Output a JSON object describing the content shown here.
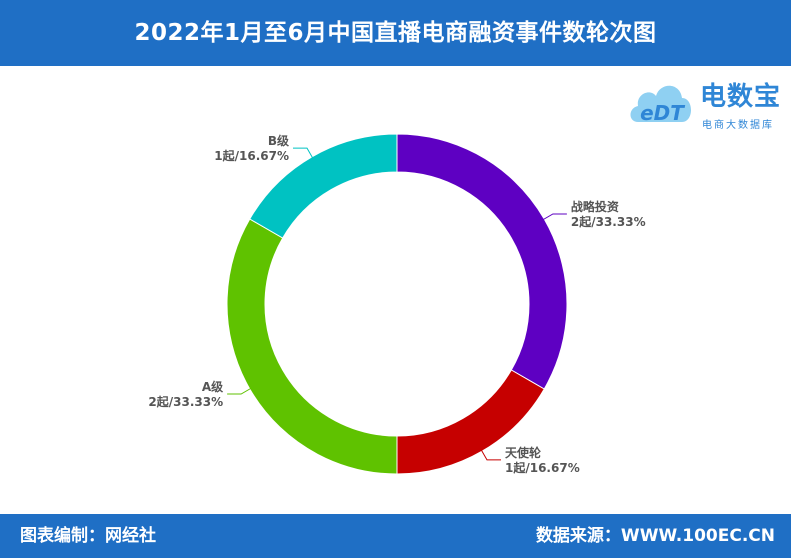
{
  "header": {
    "title": "2022年1月至6月中国直播电商融资事件数轮次图"
  },
  "footer": {
    "left": "图表编制：网经社",
    "right": "数据来源：WWW.100EC.CN"
  },
  "logo": {
    "name": "电数宝",
    "subtitle": "电商大数据库",
    "mark_text": "eDT"
  },
  "colors": {
    "header_bg": "#1f6fc5",
    "label": "#555555"
  },
  "chart_data": {
    "type": "pie",
    "donut": true,
    "title": "2022年1月至6月中国直播电商融资事件数轮次图",
    "unit": "起",
    "slices": [
      {
        "name": "战略投资",
        "value": 2,
        "percent": "33.33%",
        "label": "2起/33.33%",
        "color": "#5e00c2"
      },
      {
        "name": "天使轮",
        "value": 1,
        "percent": "16.67%",
        "label": "1起/16.67%",
        "color": "#c60000"
      },
      {
        "name": "A级",
        "value": 2,
        "percent": "33.33%",
        "label": "2起/33.33%",
        "color": "#5fc200"
      },
      {
        "name": "B级",
        "value": 1,
        "percent": "16.67%",
        "label": "1起/16.67%",
        "color": "#00c2c2"
      }
    ],
    "legend": "none"
  }
}
